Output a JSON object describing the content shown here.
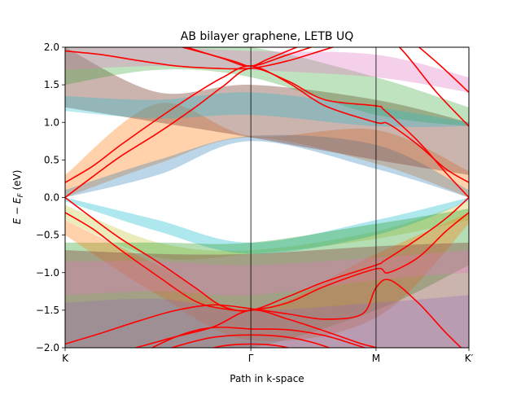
{
  "chart_data": {
    "type": "line",
    "title": "AB bilayer graphene, LETB UQ",
    "xlabel": "Path in k-space",
    "ylabel": "E − E_F (eV)",
    "ylabel_parts": {
      "main": "E − E",
      "sub": "F",
      "unit": " (eV)"
    },
    "x_ticks": [
      {
        "pos": 0.0,
        "label": "K"
      },
      {
        "pos": 1.0,
        "label": "Γ"
      },
      {
        "pos": 1.674,
        "label": "M"
      },
      {
        "pos": 2.174,
        "label": "K′"
      }
    ],
    "xlim": [
      0,
      2.174
    ],
    "ylim": [
      -2.0,
      2.0
    ],
    "y_ticks": [
      -2.0,
      -1.5,
      -1.0,
      -0.5,
      0.0,
      0.5,
      1.0,
      1.5,
      2.0
    ],
    "y_tick_labels": [
      "−2.0",
      "−1.5",
      "−1.0",
      "−0.5",
      "0.0",
      "0.5",
      "1.0",
      "1.5",
      "2.0"
    ],
    "vlines_at": [
      1.0,
      1.674
    ],
    "band_color": "#ff0000",
    "bands": [
      {
        "x": [
          0,
          0.15,
          0.3,
          0.5,
          0.7,
          0.85,
          1.0,
          1.2,
          1.4,
          1.674,
          1.72,
          1.9,
          2.05,
          2.174
        ],
        "y": [
          0.0,
          0.28,
          0.55,
          0.86,
          1.2,
          1.48,
          1.72,
          1.55,
          1.3,
          1.22,
          1.16,
          0.75,
          0.33,
          0.0
        ]
      },
      {
        "x": [
          0,
          0.15,
          0.3,
          0.5,
          0.7,
          0.85,
          1.0,
          1.2,
          1.4,
          1.674,
          1.74,
          1.9,
          2.05,
          2.174
        ],
        "y": [
          0.2,
          0.42,
          0.7,
          1.05,
          1.38,
          1.6,
          1.75,
          1.53,
          1.22,
          1.0,
          0.98,
          0.7,
          0.38,
          0.2
        ]
      },
      {
        "x": [
          0,
          0.2,
          0.4,
          0.6,
          0.8,
          1.0,
          1.2,
          1.4,
          1.6,
          1.674,
          1.8,
          2.0,
          2.174
        ],
        "y": [
          1.95,
          1.9,
          1.82,
          1.75,
          1.72,
          1.72,
          1.82,
          1.97,
          2.12,
          2.18,
          2.0,
          1.4,
          0.95
        ]
      },
      {
        "x": [
          0,
          0.3,
          0.6,
          0.9,
          1.0,
          1.1,
          1.3,
          1.5,
          1.674,
          1.8,
          2.0,
          2.174
        ],
        "y": [
          2.3,
          2.18,
          2.02,
          1.82,
          1.75,
          1.85,
          2.05,
          2.2,
          2.3,
          2.2,
          1.8,
          1.4
        ]
      },
      {
        "x": [
          0,
          0.3,
          0.6,
          0.85,
          1.0,
          1.2,
          1.45,
          1.674,
          1.85,
          2.0,
          2.174
        ],
        "y": [
          2.6,
          2.35,
          2.05,
          1.85,
          1.75,
          1.9,
          2.1,
          2.25,
          2.45,
          2.6,
          2.8
        ]
      },
      {
        "x": [
          0,
          0.15,
          0.3,
          0.5,
          0.7,
          0.85,
          1.0,
          1.2,
          1.4,
          1.674,
          1.72,
          1.9,
          2.05,
          2.174
        ],
        "y": [
          0.0,
          -0.28,
          -0.55,
          -0.86,
          -1.2,
          -1.45,
          -1.5,
          -1.32,
          -1.12,
          -0.9,
          -0.84,
          -0.55,
          -0.28,
          0.0
        ]
      },
      {
        "x": [
          0,
          0.15,
          0.3,
          0.5,
          0.7,
          0.85,
          1.0,
          1.2,
          1.4,
          1.674,
          1.74,
          1.9,
          2.05,
          2.174
        ],
        "y": [
          -0.2,
          -0.42,
          -0.7,
          -1.05,
          -1.38,
          -1.48,
          -1.5,
          -1.4,
          -1.18,
          -0.95,
          -1.0,
          -0.8,
          -0.45,
          -0.2
        ]
      },
      {
        "x": [
          0,
          0.2,
          0.4,
          0.6,
          0.8,
          1.0,
          1.2,
          1.4,
          1.6,
          1.674,
          1.75,
          1.9,
          2.05,
          2.174
        ],
        "y": [
          -1.95,
          -1.8,
          -1.64,
          -1.5,
          -1.43,
          -1.48,
          -1.55,
          -1.62,
          -1.55,
          -1.2,
          -1.1,
          -1.4,
          -1.8,
          -2.1
        ]
      },
      {
        "x": [
          0,
          0.3,
          0.6,
          0.8,
          1.0,
          1.2,
          1.4,
          1.6,
          1.674,
          1.8,
          2.0,
          2.174
        ],
        "y": [
          -2.2,
          -2.05,
          -1.85,
          -1.72,
          -1.5,
          -1.62,
          -1.78,
          -1.95,
          -2.0,
          -2.15,
          -2.35,
          -2.5
        ]
      },
      {
        "x": [
          0,
          0.3,
          0.6,
          0.8,
          1.0,
          1.2,
          1.4,
          1.55,
          1.674
        ],
        "y": [
          -2.5,
          -2.2,
          -1.85,
          -1.73,
          -1.75,
          -1.76,
          -1.84,
          -1.95,
          -2.05
        ]
      },
      {
        "x": [
          0.4,
          0.6,
          0.8,
          1.0,
          1.2,
          1.4,
          1.55
        ],
        "y": [
          -2.15,
          -1.98,
          -1.86,
          -1.83,
          -1.86,
          -1.98,
          -2.15
        ]
      },
      {
        "x": [
          0.6,
          0.8,
          1.0,
          1.2,
          1.4
        ],
        "y": [
          -2.2,
          -2.0,
          -1.95,
          -2.0,
          -2.2
        ]
      }
    ],
    "uq_bands": [
      {
        "color": "#ff7f0e",
        "alpha": 0.35,
        "upper": {
          "x": [
            0,
            0.5,
            1.0,
            1.674,
            2.174
          ],
          "y": [
            0.3,
            1.25,
            0.82,
            0.9,
            0.35
          ]
        },
        "lower": {
          "x": [
            0,
            0.5,
            1.0,
            1.674,
            2.174
          ],
          "y": [
            0.0,
            0.45,
            0.8,
            0.45,
            0.0
          ]
        }
      },
      {
        "color": "#1f77b4",
        "alpha": 0.3,
        "upper": {
          "x": [
            0,
            0.5,
            1.0,
            1.674,
            2.174
          ],
          "y": [
            0.1,
            0.5,
            0.82,
            0.7,
            0.1
          ]
        },
        "lower": {
          "x": [
            0,
            0.5,
            1.0,
            1.674,
            2.174
          ],
          "y": [
            0.0,
            0.3,
            0.75,
            0.38,
            0.0
          ]
        }
      },
      {
        "color": "#8c564b",
        "alpha": 0.45,
        "upper": {
          "x": [
            0,
            0.5,
            1.0,
            1.674,
            2.174
          ],
          "y": [
            2.0,
            1.4,
            1.5,
            1.3,
            1.0
          ]
        },
        "lower": {
          "x": [
            0,
            0.5,
            1.0,
            1.674,
            2.174
          ],
          "y": [
            1.2,
            1.0,
            0.8,
            0.5,
            0.3
          ]
        }
      },
      {
        "color": "#2ca02c",
        "alpha": 0.3,
        "upper": {
          "x": [
            0,
            0.5,
            1.0,
            1.674,
            2.174
          ],
          "y": [
            2.0,
            2.0,
            2.0,
            1.6,
            1.2
          ]
        },
        "lower": {
          "x": [
            0,
            0.5,
            1.0,
            1.674,
            2.174
          ],
          "y": [
            1.5,
            1.7,
            1.6,
            1.1,
            0.95
          ]
        }
      },
      {
        "color": "#e377c2",
        "alpha": 0.35,
        "upper": {
          "x": [
            0,
            0.5,
            1.0,
            1.674,
            2.174
          ],
          "y": [
            2.0,
            2.0,
            1.95,
            1.9,
            1.6
          ]
        },
        "lower": {
          "x": [
            0,
            0.5,
            1.0,
            1.674,
            2.174
          ],
          "y": [
            1.7,
            1.75,
            1.7,
            1.6,
            1.4
          ]
        }
      },
      {
        "color": "#17becf",
        "alpha": 0.3,
        "upper": {
          "x": [
            0,
            0.5,
            1.0,
            1.674,
            2.174
          ],
          "y": [
            1.35,
            1.3,
            1.4,
            1.2,
            1.0
          ]
        },
        "lower": {
          "x": [
            0,
            0.5,
            1.0,
            1.674,
            2.174
          ],
          "y": [
            1.15,
            1.05,
            1.1,
            0.95,
            0.95
          ]
        }
      },
      {
        "color": "#bcbd22",
        "alpha": 0.3,
        "upper": {
          "x": [
            0,
            0.5,
            1.0,
            1.674,
            2.174
          ],
          "y": [
            -0.1,
            -0.6,
            -0.7,
            -0.45,
            -0.05
          ]
        },
        "lower": {
          "x": [
            0,
            0.5,
            1.0,
            1.674,
            2.174
          ],
          "y": [
            -0.3,
            -0.8,
            -0.75,
            -0.55,
            -0.3
          ]
        }
      },
      {
        "color": "#17becf",
        "alpha": 0.35,
        "upper": {
          "x": [
            0,
            0.5,
            1.0,
            1.674,
            2.174
          ],
          "y": [
            0.0,
            -0.3,
            -0.6,
            -0.3,
            0.0
          ]
        },
        "lower": {
          "x": [
            0,
            0.5,
            1.0,
            1.674,
            2.174
          ],
          "y": [
            -0.05,
            -0.45,
            -0.75,
            -0.5,
            -0.05
          ]
        }
      },
      {
        "color": "#2ca02c",
        "alpha": 0.35,
        "upper": {
          "x": [
            0,
            0.5,
            1.0,
            1.674,
            2.174
          ],
          "y": [
            -0.6,
            -0.6,
            -0.6,
            -0.35,
            -0.15
          ]
        },
        "lower": {
          "x": [
            0,
            0.5,
            1.0,
            1.674,
            2.174
          ],
          "y": [
            -2.0,
            -2.0,
            -2.0,
            -1.5,
            -0.9
          ]
        }
      },
      {
        "color": "#ff7f0e",
        "alpha": 0.35,
        "upper": {
          "x": [
            0,
            0.5,
            1.0,
            1.674,
            2.174
          ],
          "y": [
            -0.3,
            -0.9,
            -1.5,
            -0.75,
            -0.2
          ]
        },
        "lower": {
          "x": [
            0,
            0.5,
            1.0,
            1.674,
            2.174
          ],
          "y": [
            -0.5,
            -1.3,
            -1.9,
            -1.6,
            -0.35
          ]
        }
      },
      {
        "color": "#8c564b",
        "alpha": 0.45,
        "upper": {
          "x": [
            0,
            0.5,
            1.0,
            1.674,
            2.174
          ],
          "y": [
            -0.7,
            -0.75,
            -0.75,
            -0.65,
            -0.6
          ]
        },
        "lower": {
          "x": [
            0,
            0.5,
            1.0,
            1.674,
            2.174
          ],
          "y": [
            -2.0,
            -2.0,
            -2.0,
            -2.0,
            -2.0
          ]
        }
      },
      {
        "color": "#e377c2",
        "alpha": 0.3,
        "upper": {
          "x": [
            0,
            0.5,
            1.0,
            1.674,
            2.174
          ],
          "y": [
            -0.85,
            -0.85,
            -0.9,
            -0.8,
            -0.7
          ]
        },
        "lower": {
          "x": [
            0,
            0.5,
            1.0,
            1.674,
            2.174
          ],
          "y": [
            -1.3,
            -1.25,
            -1.3,
            -1.1,
            -1.0
          ]
        }
      },
      {
        "color": "#9467bd",
        "alpha": 0.3,
        "upper": {
          "x": [
            0,
            0.5,
            1.0,
            1.674,
            2.174
          ],
          "y": [
            -1.4,
            -1.35,
            -1.5,
            -1.4,
            -1.3
          ]
        },
        "lower": {
          "x": [
            0,
            0.5,
            1.0,
            1.674,
            2.174
          ],
          "y": [
            -2.0,
            -2.0,
            -2.0,
            -2.0,
            -2.0
          ]
        }
      }
    ]
  }
}
